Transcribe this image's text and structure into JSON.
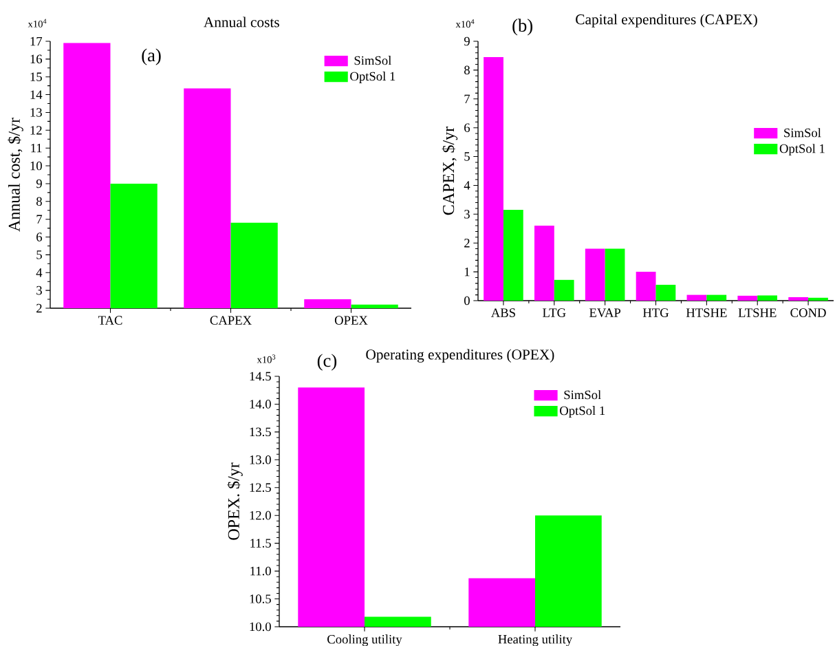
{
  "chart_data": [
    {
      "type": "bar",
      "title": "Annual costs",
      "ylabel": "Annual cost, $/yr",
      "categories": [
        "TAC",
        "CAPEX",
        "OPEX"
      ],
      "series": [
        {
          "name": "SimSol",
          "color": "#ff00ff",
          "values": [
            16.9,
            14.35,
            2.5
          ]
        },
        {
          "name": "OptSol 1",
          "color": "#00ff00",
          "values": [
            9.0,
            6.8,
            2.2
          ]
        }
      ],
      "ylim": [
        2,
        17
      ],
      "yticks": [
        2,
        3,
        4,
        5,
        6,
        7,
        8,
        9,
        10,
        11,
        12,
        13,
        14,
        15,
        16,
        17
      ],
      "legend": "top right",
      "grid": false,
      "annotations": [
        "(a)",
        "x10$^{4}$"
      ]
    },
    {
      "type": "bar",
      "title": "Capital expenditures (CAPEX)",
      "ylabel": "CAPEX, $/yr",
      "categories": [
        "ABS",
        "LTG",
        "EVAP",
        "HTG",
        "HTSHE",
        "LTSHE",
        "COND"
      ],
      "series": [
        {
          "name": "SimSol",
          "color": "#ff00ff",
          "values": [
            8.45,
            2.6,
            1.8,
            1.0,
            0.2,
            0.17,
            0.12
          ]
        },
        {
          "name": "OptSol 1",
          "color": "#00ff00",
          "values": [
            3.15,
            0.72,
            1.8,
            0.55,
            0.2,
            0.18,
            0.1
          ]
        }
      ],
      "ylim": [
        0,
        9
      ],
      "yticks": [
        0,
        1,
        2,
        3,
        4,
        5,
        6,
        7,
        8,
        9
      ],
      "legend": "right",
      "grid": false,
      "annotations": [
        "(b)",
        "x10$^{4}$"
      ]
    },
    {
      "type": "bar",
      "title": "Operating expenditures (OPEX)",
      "ylabel": "OPEX. $/yr",
      "categories": [
        "Cooling utility",
        "Heating utility"
      ],
      "series": [
        {
          "name": "SimSol",
          "color": "#ff00ff",
          "values": [
            14.3,
            10.87
          ]
        },
        {
          "name": "OptSol 1",
          "color": "#00ff00",
          "values": [
            10.18,
            12.0
          ]
        }
      ],
      "ylim": [
        10,
        14.5
      ],
      "yticks": [
        {
          "value": 10,
          "label": "10.0"
        },
        {
          "value": 10.5,
          "label": "10.5"
        },
        {
          "value": 11,
          "label": "11.0"
        },
        {
          "value": 11.5,
          "label": "11.5"
        },
        {
          "value": 12,
          "label": "12.0"
        },
        {
          "value": 12.5,
          "label": "12.5"
        },
        {
          "value": 13,
          "label": "13.0"
        },
        {
          "value": 13.5,
          "label": "13.5"
        },
        {
          "value": 14,
          "label": "14.0"
        },
        {
          "value": 14.5,
          "label": "14.5"
        }
      ],
      "legend": "top right",
      "grid": false,
      "annotations": [
        "(c)",
        "x10$^{3}$"
      ]
    }
  ]
}
